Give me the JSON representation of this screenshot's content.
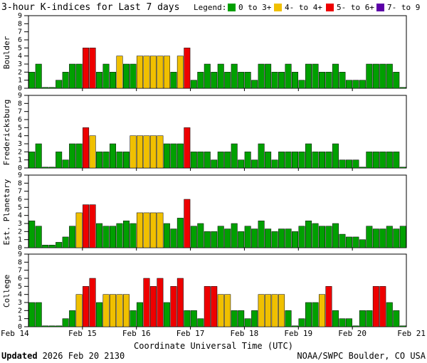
{
  "colors": {
    "green": "#00a000",
    "yellow": "#f0c000",
    "red": "#ee0000",
    "purple": "#5c00a8",
    "background": "#ffffff",
    "frame": "#000000"
  },
  "chart_data": {
    "type": "bar",
    "title": "3-hour K-indices for Last 7 days",
    "legend": {
      "label": "Legend:",
      "items": [
        {
          "label": "0 to 3+",
          "color": "green"
        },
        {
          "label": "4- to 4+",
          "color": "yellow"
        },
        {
          "label": "5- to 6+",
          "color": "red"
        },
        {
          "label": "7- to 9",
          "color": "purple"
        }
      ]
    },
    "ylim": [
      0,
      9
    ],
    "yticks": [
      "0",
      "1",
      "2",
      "3",
      "4",
      "5",
      "6",
      "7",
      "8",
      "9"
    ],
    "xlabel": "Coordinate Universal Time (UTC)",
    "xticks": [
      "Feb 14",
      "Feb 15",
      "Feb 16",
      "Feb 17",
      "Feb 18",
      "Feb 19",
      "Feb 20",
      "Feb 21"
    ],
    "bins_per_day": 8,
    "color_rule": "green if value < 4; yellow if 4 <= value < 5; red if 5 <= value < 7; purple if value >= 7",
    "series": [
      {
        "name": "Boulder",
        "values": [
          2,
          3,
          0,
          0,
          1,
          2,
          3,
          3,
          5,
          5,
          2,
          3,
          2,
          4,
          3,
          3,
          4,
          4,
          4,
          4,
          4,
          2,
          4,
          5,
          1,
          2,
          3,
          2,
          3,
          2,
          3,
          2,
          2,
          1,
          3,
          3,
          2,
          2,
          3,
          2,
          1,
          3,
          3,
          2,
          2,
          3,
          2,
          1,
          1,
          1,
          3,
          3,
          3,
          3,
          2,
          0
        ]
      },
      {
        "name": "Fredericksburg",
        "values": [
          2,
          3,
          0,
          0,
          2,
          1,
          3,
          3,
          5,
          4,
          2,
          2,
          3,
          2,
          2,
          4,
          4,
          4,
          4,
          4,
          3,
          3,
          3,
          5,
          2,
          2,
          2,
          1,
          2,
          2,
          3,
          1,
          2,
          1,
          3,
          2,
          1,
          2,
          2,
          2,
          2,
          3,
          2,
          2,
          2,
          3,
          1,
          1,
          1,
          0,
          2,
          2,
          2,
          2,
          2,
          0
        ]
      },
      {
        "name": "Est. Planetary",
        "values": [
          3.33,
          2.67,
          0.33,
          0.33,
          0.67,
          1.33,
          2.67,
          4.33,
          5.33,
          5.33,
          3,
          2.67,
          2.67,
          3,
          3.33,
          3,
          4.33,
          4.33,
          4.33,
          4.33,
          3,
          2.33,
          3.67,
          6,
          2.67,
          3,
          2,
          2,
          2.67,
          2.33,
          3,
          2,
          2.67,
          2.33,
          3.33,
          2.33,
          2,
          2.33,
          2.33,
          2,
          2.67,
          3.33,
          3,
          2.67,
          2.67,
          3,
          1.67,
          1.33,
          1.33,
          1,
          2.67,
          2.33,
          2.33,
          2.67,
          2.33,
          2.67
        ]
      },
      {
        "name": "College",
        "values": [
          3,
          3,
          0,
          0,
          0,
          1,
          2,
          4,
          5,
          6,
          3,
          4,
          4,
          4,
          4,
          2,
          3,
          6,
          5,
          6,
          3,
          5,
          6,
          2,
          2,
          1,
          5,
          5,
          4,
          4,
          2,
          2,
          1,
          2,
          4,
          4,
          4,
          4,
          2,
          0,
          1,
          3,
          3,
          4,
          5,
          2,
          1,
          1,
          0,
          2,
          2,
          5,
          5,
          3,
          2,
          0
        ]
      }
    ]
  },
  "footer": {
    "updated_label": "Updated",
    "updated_value": "2026 Feb 20 2130",
    "source": "NOAA/SWPC Boulder, CO USA"
  }
}
